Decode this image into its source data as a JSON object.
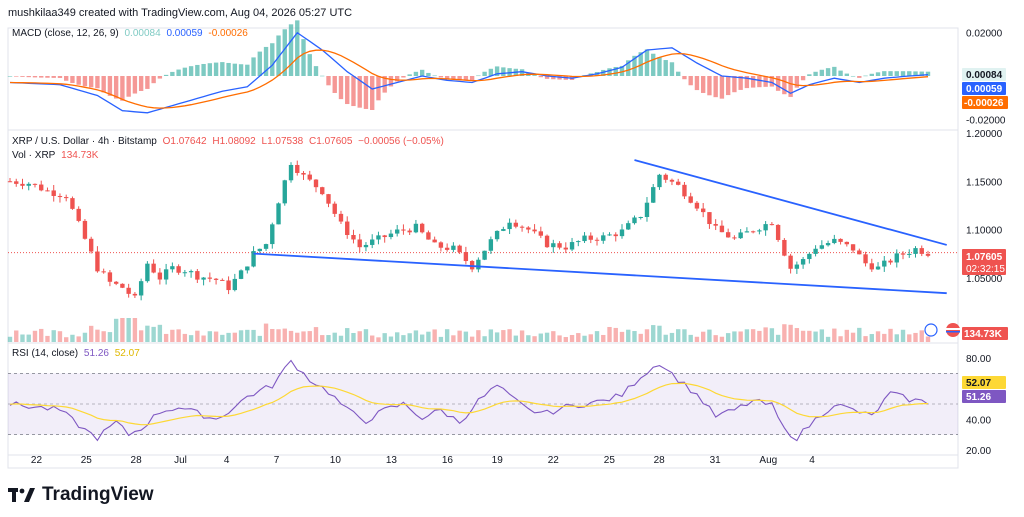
{
  "header": {
    "attribution": "mushkilaa349 created with TradingView.com, Aug 04, 2026 05:27 UTC"
  },
  "macd_legend": {
    "name": "MACD (close, 12, 26, 9)",
    "v_hist": "0.00084",
    "v_macd": "0.00059",
    "v_signal": "-0.00026"
  },
  "price_legend": {
    "symbol": "XRP / U.S. Dollar · 4h · Bitstamp",
    "open": "O1.07642",
    "high": "H1.08092",
    "low": "L1.07538",
    "close": "C1.07605",
    "change": "−0.00056 (−0.05%)",
    "vol_label": "Vol · XRP",
    "vol_value": "134.73K"
  },
  "rsi_legend": {
    "name": "RSI (14, close)",
    "v_rsi": "51.26",
    "v_ma": "52.07"
  },
  "price_badge": {
    "price": "1.07605",
    "countdown": "02:32:15"
  },
  "vol_badge": "134.73K",
  "brand": "TradingView",
  "colors": {
    "up": "#26a69a",
    "down": "#ef5350",
    "macd": "#2962ff",
    "signal": "#ff6d00",
    "rsi": "#7e57c2",
    "rsi_ma": "#fdd835",
    "trendline": "#2962ff",
    "rsi_band": "#7e57c2"
  },
  "chart_data": {
    "type": "candlestick",
    "symbol": "XRP / U.S. Dollar",
    "timeframe": "4h",
    "exchange": "Bitstamp",
    "x_tick_labels": [
      "22",
      "25",
      "28",
      "Jul",
      "4",
      "7",
      "10",
      "13",
      "16",
      "19",
      "22",
      "25",
      "28",
      "31",
      "Aug",
      "4"
    ],
    "price_axis": {
      "ticks": [
        "1.20000",
        "1.15000",
        "1.10000",
        "1.05000"
      ],
      "ylim": [
        1.0,
        1.2
      ]
    },
    "macd_axis": {
      "ticks": [
        "0.02000",
        "-0.02000"
      ],
      "ylim": [
        -0.024,
        0.024
      ]
    },
    "rsi_axis": {
      "ticks": [
        "80.00",
        "40.00",
        "20.00"
      ],
      "band": [
        30,
        70
      ],
      "mid": 50,
      "ylim": [
        18,
        82
      ]
    },
    "price_keys": [
      [
        0,
        1.15
      ],
      [
        3,
        1.148
      ],
      [
        6,
        1.14
      ],
      [
        9,
        1.135
      ],
      [
        12,
        1.09
      ],
      [
        14,
        1.06
      ],
      [
        16,
        1.045
      ],
      [
        18,
        1.04
      ],
      [
        20,
        1.028
      ],
      [
        22,
        1.065
      ],
      [
        24,
        1.05
      ],
      [
        26,
        1.06
      ],
      [
        28,
        1.058
      ],
      [
        30,
        1.052
      ],
      [
        33,
        1.048
      ],
      [
        35,
        1.04
      ],
      [
        37,
        1.055
      ],
      [
        39,
        1.075
      ],
      [
        41,
        1.085
      ],
      [
        43,
        1.13
      ],
      [
        45,
        1.17
      ],
      [
        47,
        1.155
      ],
      [
        50,
        1.14
      ],
      [
        53,
        1.105
      ],
      [
        56,
        1.082
      ],
      [
        59,
        1.09
      ],
      [
        62,
        1.098
      ],
      [
        65,
        1.102
      ],
      [
        68,
        1.083
      ],
      [
        71,
        1.08
      ],
      [
        74,
        1.062
      ],
      [
        77,
        1.088
      ],
      [
        80,
        1.11
      ],
      [
        83,
        1.1
      ],
      [
        86,
        1.085
      ],
      [
        89,
        1.082
      ],
      [
        92,
        1.09
      ],
      [
        95,
        1.092
      ],
      [
        98,
        1.098
      ],
      [
        101,
        1.115
      ],
      [
        104,
        1.157
      ],
      [
        107,
        1.145
      ],
      [
        110,
        1.125
      ],
      [
        113,
        1.1
      ],
      [
        116,
        1.09
      ],
      [
        119,
        1.1
      ],
      [
        122,
        1.108
      ],
      [
        125,
        1.06
      ],
      [
        127,
        1.068
      ],
      [
        129,
        1.082
      ],
      [
        132,
        1.088
      ],
      [
        135,
        1.08
      ],
      [
        137,
        1.065
      ],
      [
        139,
        1.06
      ],
      [
        142,
        1.072
      ],
      [
        145,
        1.08
      ],
      [
        147,
        1.076
      ]
    ],
    "volume_keys": [
      [
        0,
        8
      ],
      [
        10,
        7
      ],
      [
        15,
        14
      ],
      [
        20,
        16
      ],
      [
        24,
        9
      ],
      [
        30,
        6
      ],
      [
        38,
        7
      ],
      [
        44,
        12
      ],
      [
        48,
        10
      ],
      [
        60,
        6
      ],
      [
        75,
        7
      ],
      [
        80,
        8
      ],
      [
        90,
        6
      ],
      [
        103,
        10
      ],
      [
        106,
        9
      ],
      [
        115,
        6
      ],
      [
        125,
        10
      ],
      [
        132,
        7
      ],
      [
        140,
        8
      ],
      [
        147,
        8
      ]
    ],
    "macd_keys": [
      [
        0,
        -0.003
      ],
      [
        8,
        -0.004
      ],
      [
        14,
        -0.009
      ],
      [
        18,
        -0.016
      ],
      [
        22,
        -0.017
      ],
      [
        28,
        -0.012
      ],
      [
        34,
        -0.007
      ],
      [
        38,
        -0.005
      ],
      [
        42,
        0.005
      ],
      [
        46,
        0.02
      ],
      [
        50,
        0.012
      ],
      [
        54,
        0.002
      ],
      [
        58,
        -0.006
      ],
      [
        62,
        -0.003
      ],
      [
        66,
        0.0
      ],
      [
        70,
        -0.002
      ],
      [
        74,
        -0.003
      ],
      [
        78,
        0.001
      ],
      [
        82,
        0.002
      ],
      [
        86,
        0.0
      ],
      [
        90,
        -0.001
      ],
      [
        94,
        0.001
      ],
      [
        98,
        0.004
      ],
      [
        102,
        0.012
      ],
      [
        106,
        0.013
      ],
      [
        110,
        0.006
      ],
      [
        114,
        0.0
      ],
      [
        118,
        -0.001
      ],
      [
        122,
        -0.003
      ],
      [
        125,
        -0.008
      ],
      [
        128,
        -0.004
      ],
      [
        132,
        -0.001
      ],
      [
        136,
        -0.003
      ],
      [
        140,
        -0.001
      ],
      [
        144,
        0.0
      ],
      [
        147,
        0.0006
      ]
    ],
    "rsi_keys": [
      [
        0,
        50
      ],
      [
        4,
        48
      ],
      [
        8,
        46
      ],
      [
        12,
        33
      ],
      [
        14,
        28
      ],
      [
        17,
        38
      ],
      [
        19,
        30
      ],
      [
        21,
        34
      ],
      [
        24,
        45
      ],
      [
        27,
        48
      ],
      [
        30,
        44
      ],
      [
        33,
        40
      ],
      [
        36,
        48
      ],
      [
        38,
        55
      ],
      [
        42,
        62
      ],
      [
        45,
        78
      ],
      [
        48,
        66
      ],
      [
        51,
        58
      ],
      [
        54,
        46
      ],
      [
        57,
        39
      ],
      [
        60,
        46
      ],
      [
        63,
        50
      ],
      [
        66,
        41
      ],
      [
        69,
        46
      ],
      [
        72,
        38
      ],
      [
        75,
        52
      ],
      [
        78,
        62
      ],
      [
        80,
        55
      ],
      [
        83,
        46
      ],
      [
        86,
        44
      ],
      [
        89,
        48
      ],
      [
        92,
        50
      ],
      [
        95,
        52
      ],
      [
        98,
        56
      ],
      [
        101,
        68
      ],
      [
        104,
        77
      ],
      [
        107,
        66
      ],
      [
        110,
        56
      ],
      [
        113,
        42
      ],
      [
        116,
        46
      ],
      [
        119,
        52
      ],
      [
        122,
        49
      ],
      [
        124,
        33
      ],
      [
        126,
        28
      ],
      [
        129,
        40
      ],
      [
        132,
        50
      ],
      [
        135,
        46
      ],
      [
        138,
        42
      ],
      [
        141,
        57
      ],
      [
        144,
        53
      ],
      [
        147,
        51
      ]
    ],
    "trendlines": [
      {
        "name": "upper",
        "from": [
          100,
          1.172
        ],
        "to": [
          150,
          1.084
        ]
      },
      {
        "name": "lower",
        "from": [
          39,
          1.075
        ],
        "to": [
          150,
          1.034
        ]
      }
    ]
  }
}
